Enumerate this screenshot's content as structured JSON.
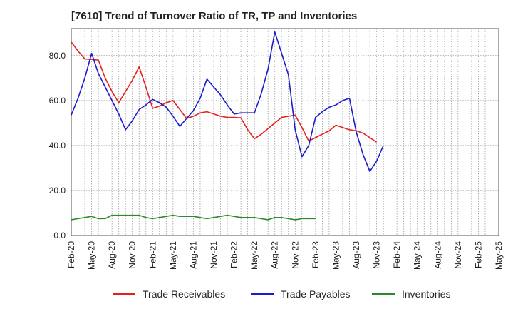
{
  "chart_data": {
    "type": "line",
    "title": "[7610]  Trend of Turnover Ratio of TR, TP and Inventories",
    "x_tick_labels": [
      "Feb-20",
      "May-20",
      "Aug-20",
      "Nov-20",
      "Feb-21",
      "May-21",
      "Aug-21",
      "Nov-21",
      "Feb-22",
      "May-22",
      "Aug-22",
      "Nov-22",
      "Feb-23",
      "May-23",
      "Aug-23",
      "Nov-23",
      "Feb-24",
      "May-24",
      "Aug-24",
      "Nov-24",
      "Feb-25",
      "May-25"
    ],
    "y_tick_labels": [
      "0.0",
      "20.0",
      "40.0",
      "60.0",
      "80.0"
    ],
    "ylim": [
      0,
      92
    ],
    "grid": true,
    "legend_position": "bottom",
    "series": [
      {
        "name": "Trade Receivables",
        "color": "#e8201c",
        "values": [
          86,
          82,
          78.5,
          78.3,
          78,
          70,
          64,
          59,
          64,
          69,
          75,
          66,
          56.5,
          57.5,
          59,
          60,
          56,
          52,
          53,
          54.5,
          55,
          54,
          53,
          52.5,
          52.5,
          52.3,
          47,
          43,
          45,
          47.5,
          50,
          52.5,
          53,
          53.5,
          48,
          42,
          43.5,
          45,
          46.5,
          49,
          48,
          47,
          46.5,
          45.5,
          43.5,
          41.5
        ]
      },
      {
        "name": "Trade Payables",
        "color": "#1c1ccc",
        "values": [
          53.5,
          61,
          70,
          81,
          72,
          66,
          60,
          54,
          47,
          51,
          56,
          58,
          60.5,
          59,
          57,
          53,
          48.5,
          52,
          55.5,
          61,
          69.5,
          66,
          62.5,
          58,
          54,
          54.5,
          54.5,
          54.5,
          63,
          74,
          90.5,
          81,
          71.5,
          47,
          35,
          40,
          52.5,
          55,
          57,
          58,
          60,
          61,
          46,
          36,
          28.5,
          33,
          40
        ]
      },
      {
        "name": "Inventories",
        "color": "#2b8a2b",
        "values": [
          7,
          7.5,
          8,
          8.5,
          7.5,
          7.5,
          9,
          9,
          9,
          9,
          9,
          8,
          7.5,
          8,
          8.5,
          9,
          8.5,
          8.5,
          8.5,
          8,
          7.5,
          8,
          8.5,
          9,
          8.5,
          8,
          8,
          8,
          7.5,
          7,
          8,
          8,
          7.5,
          7,
          7.5,
          7.5,
          7.5
        ]
      }
    ]
  }
}
